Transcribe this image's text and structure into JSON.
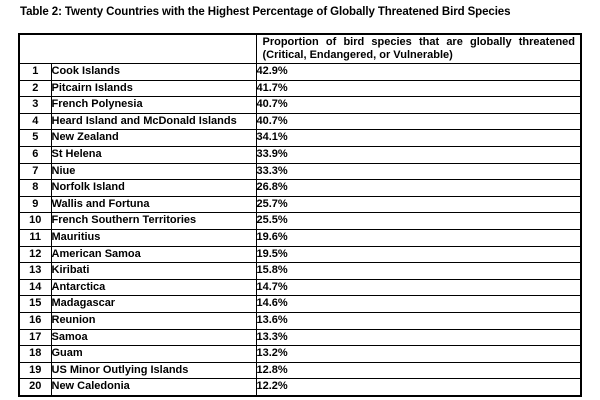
{
  "title": "Table 2: Twenty Countries with the Highest Percentage of Globally Threatened Bird Species",
  "table": {
    "header": {
      "line1": "Proportion of bird species that are globally threatened",
      "line2": "(Critical, Endangered, or Vulnerable)"
    },
    "rows": [
      {
        "rank": "1",
        "country": "Cook Islands",
        "value": "42.9%"
      },
      {
        "rank": "2",
        "country": "Pitcairn Islands",
        "value": "41.7%"
      },
      {
        "rank": "3",
        "country": "French Polynesia",
        "value": "40.7%"
      },
      {
        "rank": "4",
        "country": "Heard Island and McDonald Islands",
        "value": "40.7%"
      },
      {
        "rank": "5",
        "country": "New Zealand",
        "value": "34.1%"
      },
      {
        "rank": "6",
        "country": "St Helena",
        "value": "33.9%"
      },
      {
        "rank": "7",
        "country": "Niue",
        "value": "33.3%"
      },
      {
        "rank": "8",
        "country": "Norfolk Island",
        "value": "26.8%"
      },
      {
        "rank": "9",
        "country": "Wallis and Fortuna",
        "value": "25.7%"
      },
      {
        "rank": "10",
        "country": "French Southern Territories",
        "value": "25.5%"
      },
      {
        "rank": "11",
        "country": "Mauritius",
        "value": "19.6%"
      },
      {
        "rank": "12",
        "country": "American Samoa",
        "value": "19.5%"
      },
      {
        "rank": "13",
        "country": "Kiribati",
        "value": "15.8%"
      },
      {
        "rank": "14",
        "country": "Antarctica",
        "value": "14.7%"
      },
      {
        "rank": "15",
        "country": "Madagascar",
        "value": "14.6%"
      },
      {
        "rank": "16",
        "country": "Reunion",
        "value": "13.6%"
      },
      {
        "rank": "17",
        "country": "Samoa",
        "value": "13.3%"
      },
      {
        "rank": "18",
        "country": "Guam",
        "value": "13.2%"
      },
      {
        "rank": "19",
        "country": "US Minor Outlying Islands",
        "value": "12.8%"
      },
      {
        "rank": "20",
        "country": "New Caledonia",
        "value": "12.2%"
      }
    ]
  },
  "colors": {
    "text": "#000000",
    "border": "#000000",
    "background": "#ffffff"
  }
}
